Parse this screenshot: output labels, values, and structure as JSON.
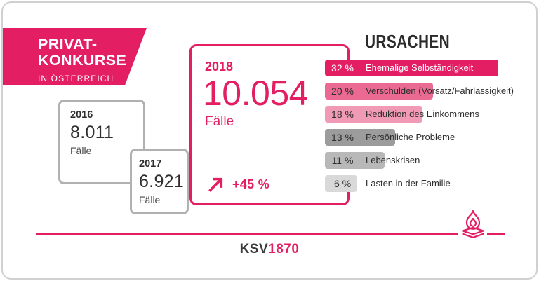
{
  "banner": {
    "title_line1": "PRIVAT-",
    "title_line2": "KONKURSE",
    "subtitle": "IN ÖSTERREICH"
  },
  "years": {
    "y2016": {
      "year": "2016",
      "value": "8.011",
      "unit": "Fälle"
    },
    "y2017": {
      "year": "2017",
      "value": "6.921",
      "unit": "Fälle"
    },
    "y2018": {
      "year": "2018",
      "value": "10.054",
      "unit": "Fälle",
      "change": "+45 %"
    }
  },
  "chart_data": {
    "type": "bar",
    "title": "URSACHEN",
    "orientation": "horizontal",
    "unit": "%",
    "categories": [
      "Ehemalige Selbständigkeit",
      "Verschulden (Vorsatz/Fahrlässigkeit)",
      "Reduktion des Einkommens",
      "Persönliche Probleme",
      "Lebenskrisen",
      "Lasten in der Familie"
    ],
    "values": [
      32,
      20,
      18,
      13,
      11,
      6
    ],
    "value_labels": [
      "32 %",
      "20 %",
      "18 %",
      "13 %",
      "11 %",
      "6 %"
    ],
    "bar_colors": [
      "#e31e62",
      "#ea6a94",
      "#f19ab5",
      "#9c9c9c",
      "#b8b8b8",
      "#d9d9d9"
    ],
    "label_colors": [
      "#ffffff",
      "#2e2e2e",
      "#2e2e2e",
      "#2e2e2e",
      "#2e2e2e",
      "#2e2e2e"
    ],
    "xlim": [
      0,
      32
    ],
    "legend": "none",
    "grid": false
  },
  "footer": {
    "logo_prefix": "KSV",
    "logo_suffix": "1870"
  },
  "icons": {
    "trend_up_icon": "diagonal-arrow-up-right",
    "flame_icon": "flame-on-layers"
  },
  "colors": {
    "accent": "#e31e62",
    "pink_medium": "#ea6a94",
    "pink_light": "#f19ab5",
    "gray_dark": "#9c9c9c",
    "gray_medium": "#b8b8b8",
    "gray_light": "#d9d9d9",
    "box_border": "#b1b1b1",
    "text_dark": "#2e2e2e"
  }
}
